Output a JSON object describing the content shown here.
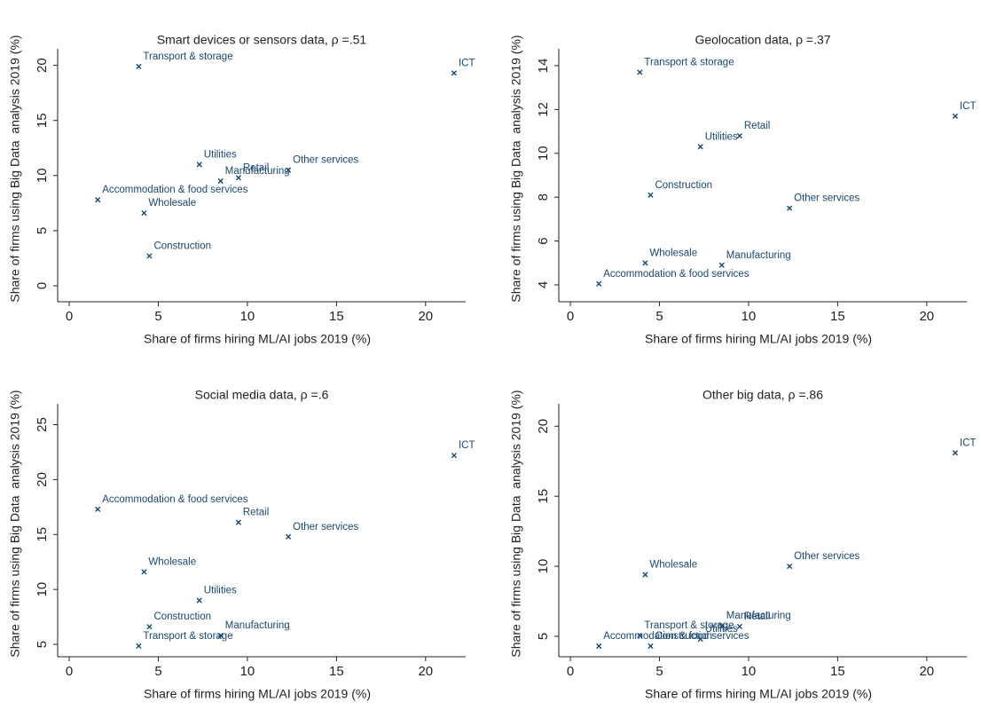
{
  "chart_data": [
    {
      "type": "scatter",
      "title": "Smart devices or sensors data, ρ =.51",
      "x_label": "Share of firms hiring ML/AI jobs 2019 (%)",
      "y_label": "Share of firms using Big Data  analysis 2019 (%)",
      "color": "#1a476f",
      "labels": [
        "Transport & storage",
        "ICT",
        "Utilities",
        "Manufacturing",
        "Retail",
        "Other services",
        "Accommodation & food services",
        "Wholesale",
        "Construction"
      ],
      "x": [
        3.9,
        21.6,
        7.3,
        8.5,
        9.5,
        12.3,
        1.6,
        4.2,
        4.5
      ],
      "y": [
        19.9,
        19.3,
        11.0,
        9.5,
        9.8,
        10.5,
        7.8,
        6.6,
        2.7
      ],
      "xlim": [
        -0.65,
        22.25
      ],
      "ylim": [
        -1.45,
        21.5
      ],
      "xticks": [
        0,
        5,
        10,
        15,
        20
      ],
      "yticks": [
        0,
        5,
        10,
        15,
        20
      ]
    },
    {
      "type": "scatter",
      "title": "Geolocation data, ρ =.37",
      "x_label": "Share of firms hiring ML/AI jobs 2019 (%)",
      "y_label": "Share of firms using Big Data  analysis 2019 (%)",
      "color": "#1a476f",
      "labels": [
        "Transport & storage",
        "ICT",
        "Retail",
        "Utilities",
        "Construction",
        "Other services",
        "Wholesale",
        "Manufacturing",
        "Accommodation & food services"
      ],
      "x": [
        3.9,
        21.6,
        9.5,
        7.3,
        4.5,
        12.3,
        4.2,
        8.5,
        1.6
      ],
      "y": [
        13.7,
        11.7,
        10.8,
        10.3,
        8.1,
        7.5,
        5.0,
        4.9,
        4.05
      ],
      "xlim": [
        -0.65,
        22.25
      ],
      "ylim": [
        3.23,
        14.77
      ],
      "xticks": [
        0,
        5,
        10,
        15,
        20
      ],
      "yticks": [
        4,
        6,
        8,
        10,
        12,
        14
      ]
    },
    {
      "type": "scatter",
      "title": "Social media data, ρ =.6",
      "x_label": "Share of firms hiring ML/AI jobs 2019 (%)",
      "y_label": "Share of firms using Big Data  analysis 2019 (%)",
      "color": "#1a476f",
      "labels": [
        "ICT",
        "Accommodation & food services",
        "Retail",
        "Other services",
        "Wholesale",
        "Utilities",
        "Construction",
        "Manufacturing",
        "Transport & storage"
      ],
      "x": [
        21.6,
        1.6,
        9.5,
        12.3,
        4.2,
        7.3,
        4.5,
        8.5,
        3.9
      ],
      "y": [
        22.2,
        17.3,
        16.1,
        14.8,
        11.6,
        9.0,
        6.6,
        5.8,
        4.85
      ],
      "xlim": [
        -0.65,
        22.25
      ],
      "ylim": [
        3.87,
        26.9
      ],
      "xticks": [
        0,
        5,
        10,
        15,
        20
      ],
      "yticks": [
        5,
        10,
        15,
        20,
        25
      ]
    },
    {
      "type": "scatter",
      "title": "Other big data, ρ =.86",
      "x_label": "Share of firms hiring ML/AI jobs 2019 (%)",
      "y_label": "Share of firms using Big Data  analysis 2019 (%)",
      "color": "#1a476f",
      "labels": [
        "ICT",
        "Other services",
        "Wholesale",
        "Manufacturing",
        "Retail",
        "Transport & storage",
        "Utilities",
        "Construction",
        "Accommodation & food services"
      ],
      "x": [
        21.6,
        12.3,
        4.2,
        8.5,
        9.5,
        3.9,
        7.3,
        4.5,
        1.6
      ],
      "y": [
        18.1,
        10.0,
        9.4,
        5.75,
        5.7,
        5.05,
        4.8,
        4.3,
        4.3
      ],
      "xlim": [
        -0.65,
        22.25
      ],
      "ylim": [
        3.54,
        21.6
      ],
      "xticks": [
        0,
        5,
        10,
        15,
        20
      ],
      "yticks": [
        5,
        10,
        15,
        20
      ]
    }
  ]
}
